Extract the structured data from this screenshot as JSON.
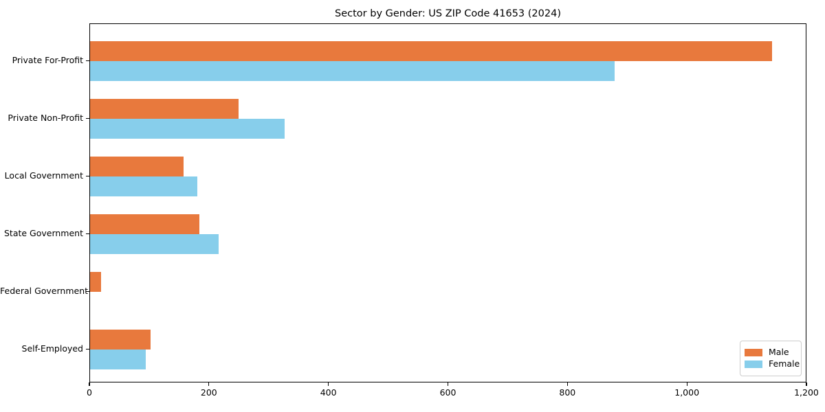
{
  "title": "Sector by Gender: US ZIP Code 41653 (2024)",
  "chart_data": {
    "type": "bar",
    "orientation": "horizontal",
    "title": "Sector by Gender: US ZIP Code 41653 (2024)",
    "categories": [
      "Private For-Profit",
      "Private Non-Profit",
      "Local Government",
      "State Government",
      "Federal Government",
      "Self-Employed"
    ],
    "series": [
      {
        "name": "Male",
        "color": "#E8793D",
        "values": [
          1141,
          249,
          156,
          183,
          18,
          101
        ]
      },
      {
        "name": "Female",
        "color": "#87CEEB",
        "values": [
          878,
          325,
          180,
          215,
          0,
          93
        ]
      }
    ],
    "xlim": [
      0,
      1200
    ],
    "x_ticks": [
      0,
      200,
      400,
      600,
      800,
      1000,
      1200
    ],
    "x_tick_labels": [
      "0",
      "200",
      "400",
      "600",
      "800",
      "1,000",
      "1,200"
    ],
    "xlabel": "",
    "ylabel": "",
    "grid": false,
    "legend_position": "lower right",
    "background_color": "#ffffff",
    "spine_color": "#000000"
  }
}
